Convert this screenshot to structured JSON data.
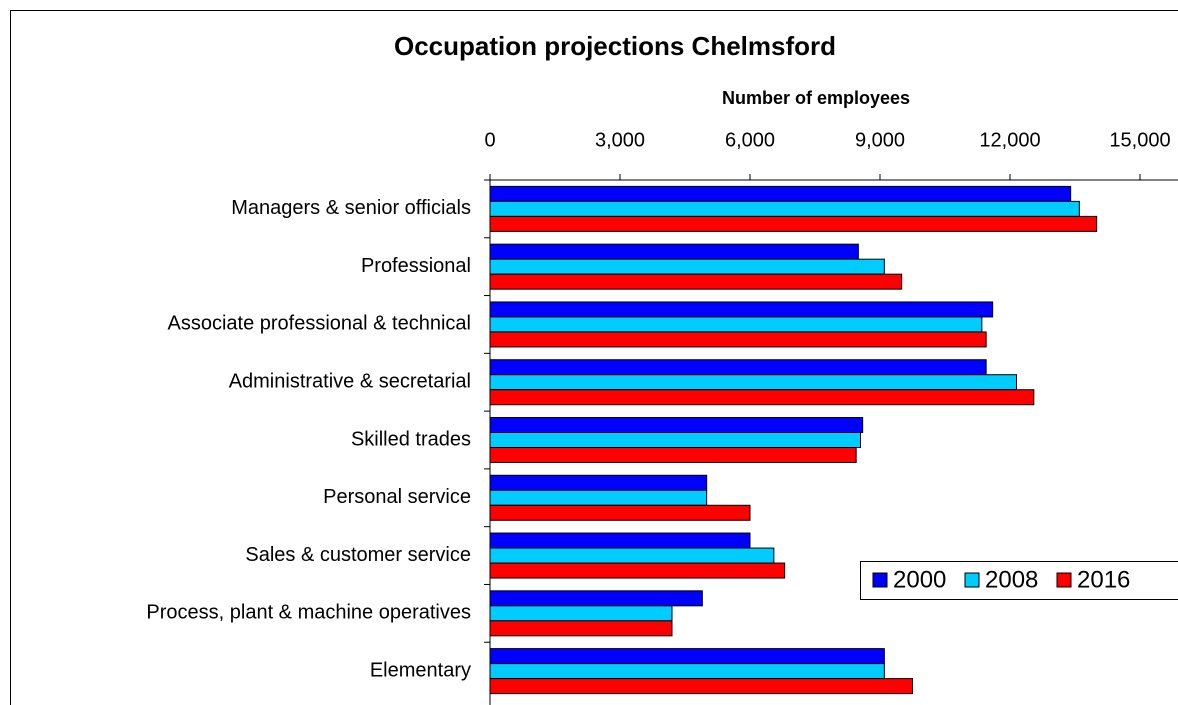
{
  "chart_data": {
    "type": "hbar",
    "title": "Occupation projections Chelmsford",
    "x_label": "Number of employees",
    "categories": [
      "Managers & senior officials",
      "Professional",
      "Associate professional & technical",
      "Administrative & secretarial",
      "Skilled trades",
      "Personal service",
      "Sales & customer service",
      "Process, plant & machine operatives",
      "Elementary"
    ],
    "series": [
      {
        "name": "2000",
        "color": "#0000ff",
        "values": [
          13400,
          8500,
          11600,
          11450,
          8600,
          5000,
          6000,
          4900,
          9100
        ]
      },
      {
        "name": "2008",
        "color": "#00ccff",
        "values": [
          13600,
          9100,
          11350,
          12150,
          8550,
          5000,
          6550,
          4200,
          9100
        ]
      },
      {
        "name": "2016",
        "color": "#ff0000",
        "values": [
          14000,
          9500,
          11450,
          12550,
          8450,
          6000,
          6800,
          4200,
          9750
        ]
      }
    ],
    "xlim": [
      0,
      15000
    ],
    "xticks": [
      0,
      {
        "value": 3000,
        "label": "3,000"
      },
      {
        "value": 6000,
        "label": "6,000"
      },
      {
        "value": 9000,
        "label": "9,000"
      },
      {
        "value": 12000,
        "label": "12,000"
      },
      {
        "value": 15000,
        "label": "15,000"
      }
    ],
    "legend": "bottom-right"
  }
}
